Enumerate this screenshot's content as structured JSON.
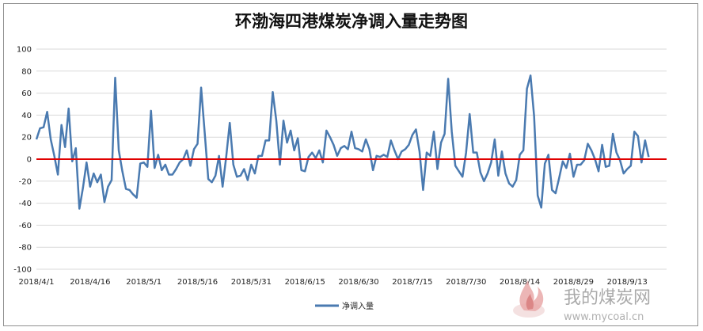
{
  "chart_data": {
    "type": "line",
    "title": "环渤海四港煤炭净调入量走势图",
    "xlabel": "",
    "ylabel": "",
    "ylim": [
      -100,
      100
    ],
    "y_ticks": [
      100,
      80,
      60,
      40,
      20,
      0,
      -20,
      -40,
      -60,
      -80,
      -100
    ],
    "x_tick_labels": [
      "2018/4/1",
      "2018/4/16",
      "2018/5/1",
      "2018/5/16",
      "2018/5/31",
      "2018/6/15",
      "2018/6/30",
      "2018/7/15",
      "2018/7/30",
      "2018/8/14",
      "2018/8/29",
      "2018/9/13"
    ],
    "x_tick_days": [
      0,
      15,
      30,
      45,
      60,
      75,
      90,
      105,
      120,
      135,
      150,
      165
    ],
    "x_days_range": [
      0,
      176
    ],
    "reference_line": {
      "y": 0,
      "color": "#e00000"
    },
    "series": [
      {
        "name": "净调入量",
        "color": "#4a7ab0",
        "values": [
          18,
          28,
          29,
          43,
          18,
          3,
          -14,
          31,
          11,
          46,
          -2,
          10,
          -45,
          -26,
          -3,
          -25,
          -13,
          -21,
          -14,
          -39,
          -25,
          -19,
          74,
          8,
          -11,
          -27,
          -28,
          -32,
          -35,
          -4,
          -3,
          -7,
          44,
          -8,
          4,
          -10,
          -5,
          -14,
          -14,
          -9,
          -3,
          0,
          8,
          -6,
          9,
          14,
          65,
          24,
          -18,
          -21,
          -15,
          3,
          -25,
          2,
          33,
          -5,
          -16,
          -15,
          -9,
          -19,
          -5,
          -13,
          3,
          3,
          17,
          17,
          61,
          35,
          -5,
          35,
          15,
          26,
          8,
          19,
          -10,
          -11,
          2,
          6,
          1,
          8,
          -3,
          26,
          20,
          13,
          3,
          10,
          12,
          9,
          25,
          10,
          9,
          7,
          18,
          9,
          -10,
          3,
          2,
          4,
          2,
          17,
          8,
          0,
          7,
          9,
          13,
          22,
          27,
          7,
          -28,
          6,
          3,
          25,
          -9,
          15,
          23,
          73,
          25,
          -6,
          -11,
          -16,
          6,
          41,
          6,
          6,
          -12,
          -20,
          -13,
          -3,
          18,
          -15,
          7,
          -13,
          -22,
          -25,
          -19,
          4,
          8,
          64,
          76,
          39,
          -33,
          -44,
          -4,
          4,
          -28,
          -31,
          -17,
          -2,
          -8,
          5,
          -16,
          -5,
          -5,
          -1,
          14,
          8,
          0,
          -11,
          13,
          -7,
          -6,
          23,
          6,
          -1,
          -13,
          -9,
          -6,
          25,
          21,
          -3,
          17,
          2
        ]
      }
    ],
    "grid": true,
    "legend_position": "bottom-center"
  },
  "legend": {
    "label": "净调入量"
  },
  "watermark": {
    "site_cn": "我的煤炭网",
    "site_en": "www.mycoal.cn"
  }
}
